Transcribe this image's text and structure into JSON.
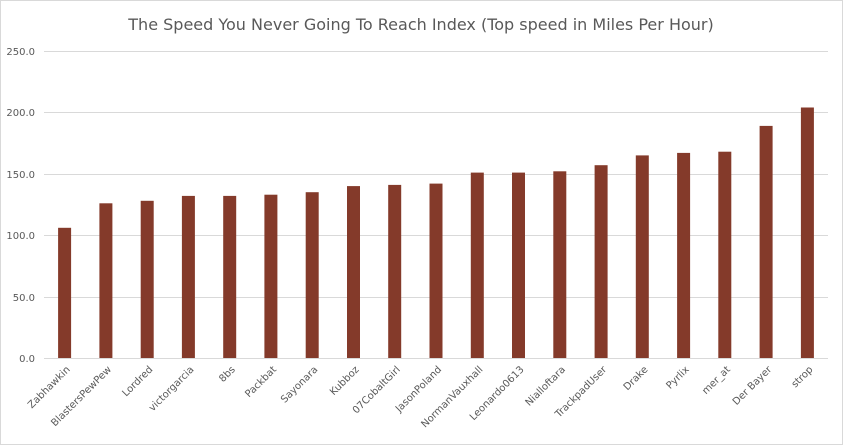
{
  "chart_data": {
    "type": "bar",
    "title": "The Speed You Never Going To Reach Index (Top speed in Miles Per Hour)",
    "xlabel": "",
    "ylabel": "",
    "categories": [
      "Zabhawkin",
      "BlastersPewPew",
      "Lordred",
      "victorgarcia",
      "8bs",
      "Packbat",
      "Sayonara",
      "Kubboz",
      "07CobaltGirl",
      "JasonPoland",
      "NormanVauxhall",
      "Leonardo0613",
      "Nialloftara",
      "TrackpadUser",
      "Drake",
      "Pyrlix",
      "mer_at",
      "Der Bayer",
      "strop"
    ],
    "values": [
      106,
      126,
      128,
      132,
      132,
      133,
      135,
      140,
      141,
      142,
      151,
      151,
      152,
      157,
      165,
      167,
      168,
      189,
      204
    ],
    "ylim": [
      0,
      250
    ],
    "yticks": [
      0,
      50,
      100,
      150,
      200,
      250
    ],
    "ytick_labels": [
      "0.0",
      "50.0",
      "100.0",
      "150.0",
      "200.0",
      "250.0"
    ],
    "bar_color": "#843a2a",
    "grid": true,
    "legend": "none"
  }
}
